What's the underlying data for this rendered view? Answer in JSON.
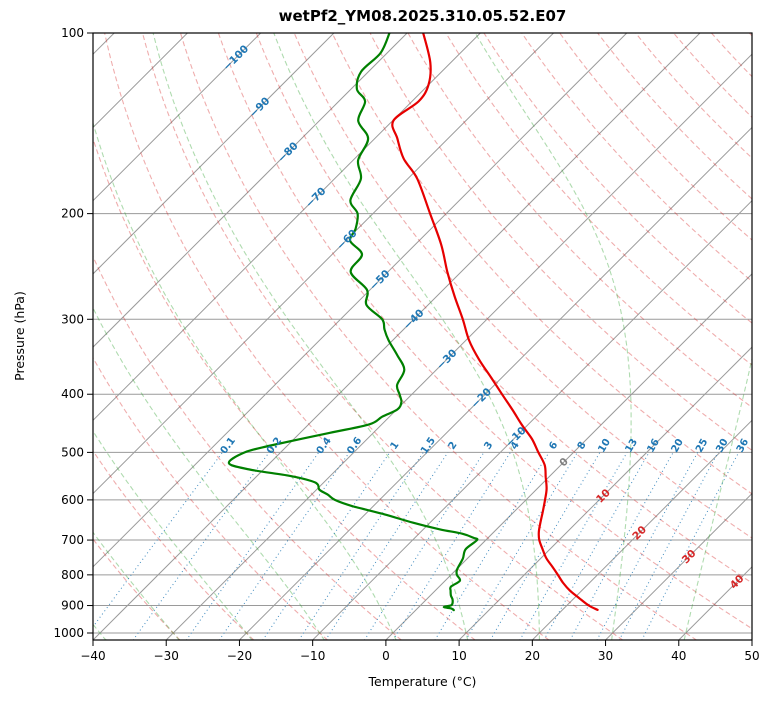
{
  "title": "wetPf2_YM08.2025.310.05.52.E07",
  "style": {
    "background": "#ffffff",
    "frame_color": "#000000",
    "grid_color": "#9a9a9a",
    "isotherm_color": "#9a9a9a",
    "dry_adiabat_color": "#d62728",
    "dry_adiabat_opacity": 0.38,
    "moist_adiabat_color": "#2ca02c",
    "moist_adiabat_opacity": 0.38,
    "mixing_line_color": "#1f77b4",
    "mixing_line_opacity": 0.85,
    "mixing_label_color": "#1f77b4",
    "isotherm_label_blue": "#1f77b4",
    "isotherm_label_red": "#d62728",
    "isotherm_label_gray": "#808080",
    "tick_label_color": "#000000"
  },
  "chart_data": {
    "type": "line",
    "variant": "skew-t-log-p",
    "skew_degrees": 45,
    "x_axis": {
      "label": "Temperature (°C)",
      "min": -40,
      "max": 50,
      "ticks": [
        -40,
        -30,
        -20,
        -10,
        0,
        10,
        20,
        30,
        40,
        50
      ]
    },
    "y_axis": {
      "label": "Pressure (hPa)",
      "scale": "log",
      "min": 100,
      "max": 1028,
      "ticks": [
        100,
        200,
        300,
        400,
        500,
        600,
        700,
        800,
        900,
        1000
      ]
    },
    "reference_lines": {
      "isotherms": {
        "min": -120,
        "max": 50,
        "step": 10,
        "labels": [
          {
            "t": -100,
            "p": 110
          },
          {
            "t": -90,
            "p": 133
          },
          {
            "t": -80,
            "p": 158
          },
          {
            "t": -70,
            "p": 188
          },
          {
            "t": -60,
            "p": 221
          },
          {
            "t": -50,
            "p": 258
          },
          {
            "t": -40,
            "p": 300
          },
          {
            "t": -30,
            "p": 350
          },
          {
            "t": -20,
            "p": 406
          },
          {
            "t": -10,
            "p": 471
          },
          {
            "t": 0,
            "p": 519
          },
          {
            "t": 10,
            "p": 591
          },
          {
            "t": 20,
            "p": 681
          },
          {
            "t": 30,
            "p": 746
          },
          {
            "t": 40,
            "p": 822
          }
        ]
      },
      "dry_adiabats": {
        "theta_min": -30,
        "theta_max": 200,
        "step": 10
      },
      "moist_adiabats": {
        "t_start_min": -40,
        "t_start_max": 50,
        "step": 10
      },
      "mixing_ratio": {
        "values": [
          0.1,
          0.2,
          0.4,
          0.6,
          1,
          1.5,
          2,
          3,
          4,
          6,
          8,
          10,
          13,
          16,
          20,
          25,
          30,
          36
        ],
        "top_p": 500,
        "label_p": 487
      }
    },
    "series": [
      {
        "name": "temperature",
        "color": "#e60000",
        "units": {
          "pressure": "hPa",
          "value": "degC"
        },
        "points": [
          [
            100,
            -77.8
          ],
          [
            112,
            -72.8
          ],
          [
            122,
            -70.0
          ],
          [
            130,
            -69.1
          ],
          [
            140,
            -69.9
          ],
          [
            150,
            -66.9
          ],
          [
            162,
            -63.3
          ],
          [
            175,
            -58.7
          ],
          [
            200,
            -52.2
          ],
          [
            225,
            -46.5
          ],
          [
            250,
            -41.9
          ],
          [
            275,
            -37.5
          ],
          [
            300,
            -33.3
          ],
          [
            325,
            -29.6
          ],
          [
            350,
            -25.6
          ],
          [
            375,
            -21.5
          ],
          [
            400,
            -17.7
          ],
          [
            425,
            -14.1
          ],
          [
            450,
            -10.8
          ],
          [
            475,
            -7.5
          ],
          [
            500,
            -4.8
          ],
          [
            525,
            -2.2
          ],
          [
            550,
            -0.4
          ],
          [
            575,
            1.3
          ],
          [
            600,
            2.6
          ],
          [
            630,
            4.0
          ],
          [
            660,
            5.3
          ],
          [
            680,
            6.2
          ],
          [
            700,
            7.3
          ],
          [
            725,
            9.0
          ],
          [
            750,
            10.7
          ],
          [
            775,
            12.7
          ],
          [
            800,
            14.6
          ],
          [
            825,
            16.4
          ],
          [
            850,
            18.4
          ],
          [
            875,
            20.7
          ],
          [
            900,
            23.0
          ],
          [
            915,
            24.8
          ]
        ]
      },
      {
        "name": "dewpoint",
        "color": "#008000",
        "units": {
          "pressure": "hPa",
          "value": "degC"
        },
        "points": [
          [
            100,
            -82.4
          ],
          [
            108,
            -80.9
          ],
          [
            116,
            -81.0
          ],
          [
            124,
            -79.2
          ],
          [
            130,
            -76.4
          ],
          [
            140,
            -74.7
          ],
          [
            150,
            -70.9
          ],
          [
            163,
            -69.3
          ],
          [
            175,
            -66.4
          ],
          [
            190,
            -64.9
          ],
          [
            200,
            -62.1
          ],
          [
            212,
            -60.3
          ],
          [
            222,
            -59.4
          ],
          [
            234,
            -55.9
          ],
          [
            250,
            -55.1
          ],
          [
            268,
            -50.4
          ],
          [
            284,
            -48.4
          ],
          [
            300,
            -44.3
          ],
          [
            312,
            -42.6
          ],
          [
            325,
            -40.6
          ],
          [
            344,
            -37.4
          ],
          [
            364,
            -34.4
          ],
          [
            386,
            -33.3
          ],
          [
            400,
            -31.7
          ],
          [
            412,
            -30.4
          ],
          [
            424,
            -29.9
          ],
          [
            436,
            -31.0
          ],
          [
            449,
            -31.7
          ],
          [
            464,
            -36.0
          ],
          [
            487,
            -42.3
          ],
          [
            500,
            -44.9
          ],
          [
            521,
            -45.6
          ],
          [
            534,
            -41.9
          ],
          [
            547,
            -35.6
          ],
          [
            558,
            -31.9
          ],
          [
            566,
            -30.5
          ],
          [
            577,
            -29.6
          ],
          [
            588,
            -27.8
          ],
          [
            600,
            -26.1
          ],
          [
            614,
            -23.0
          ],
          [
            634,
            -17.4
          ],
          [
            655,
            -12.3
          ],
          [
            672,
            -7.7
          ],
          [
            683,
            -4.1
          ],
          [
            694,
            -2.0
          ],
          [
            700,
            -1.2
          ],
          [
            725,
            -1.5
          ],
          [
            752,
            -0.6
          ],
          [
            784,
            0.1
          ],
          [
            800,
            0.8
          ],
          [
            818,
            2.0
          ],
          [
            837,
            1.6
          ],
          [
            850,
            2.1
          ],
          [
            866,
            2.8
          ],
          [
            880,
            3.6
          ],
          [
            898,
            4.2
          ],
          [
            905,
            3.4
          ],
          [
            910,
            4.6
          ],
          [
            916,
            5.2
          ]
        ]
      }
    ]
  }
}
